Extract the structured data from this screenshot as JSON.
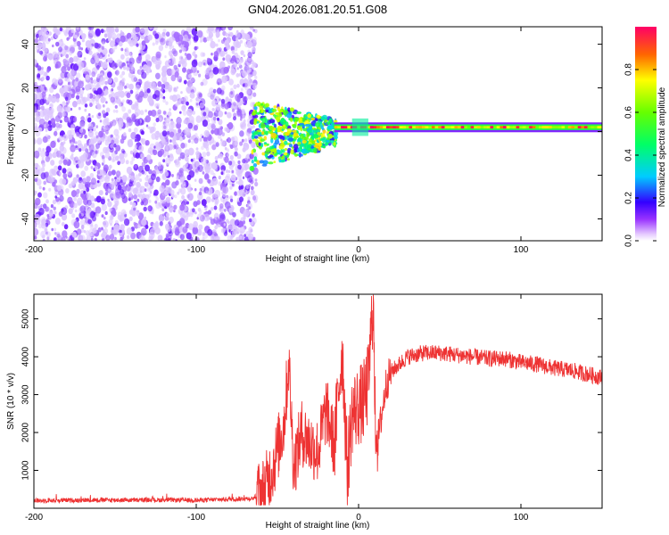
{
  "chart_data": [
    {
      "type": "heatmap",
      "title": "GN04.2026.081.20.51.G08",
      "xlabel": "Height of straight line (km)",
      "ylabel": "Frequency (Hz)",
      "xlim": [
        -200,
        150
      ],
      "ylim": [
        -50,
        48
      ],
      "xticks": [
        -200,
        -100,
        0,
        100
      ],
      "yticks": [
        -40,
        -20,
        0,
        20,
        40
      ],
      "grid": false,
      "colorbar": {
        "label": "Normalized spectral amplitude",
        "range": [
          0.0,
          1.0
        ],
        "ticks": [
          0.0,
          0.2,
          0.4,
          0.6,
          0.8
        ],
        "colormap": "rainbow (violet to red)"
      },
      "regions": [
        {
          "x_range": [
            -200,
            -63
          ],
          "freq_range": [
            -50,
            48
          ],
          "amplitude": "noise 0.1-0.2"
        },
        {
          "x_range": [
            -65,
            -15
          ],
          "freq_range": [
            -18,
            12
          ],
          "amplitude": "scattered 0.2-0.8"
        },
        {
          "x_range": [
            -15,
            150
          ],
          "freq_center": 2,
          "bandwidth_hz": 3,
          "amplitude": "band 0.6-1.0"
        }
      ]
    },
    {
      "type": "line",
      "xlabel": "Height of straight line (km)",
      "ylabel": "SNR (10 * v/v)",
      "xlim": [
        -200,
        150
      ],
      "ylim": [
        0,
        5650
      ],
      "xticks": [
        -200,
        -100,
        0,
        100
      ],
      "yticks": [
        1000,
        2000,
        3000,
        4000,
        5000
      ],
      "color": "#ee3333",
      "series": [
        {
          "name": "SNR",
          "x": [
            -200,
            -180,
            -160,
            -140,
            -120,
            -100,
            -80,
            -65,
            -58,
            -52,
            -46,
            -43,
            -40,
            -35,
            -30,
            -25,
            -20,
            -17,
            -15,
            -12,
            -10,
            -7,
            -4,
            0,
            3,
            6,
            9,
            10,
            12,
            14,
            17,
            20,
            25,
            30,
            40,
            50,
            60,
            70,
            80,
            90,
            100,
            110,
            120,
            130,
            140,
            150
          ],
          "y": [
            200,
            210,
            220,
            215,
            220,
            210,
            240,
            260,
            500,
            1200,
            2200,
            3900,
            1100,
            2000,
            1700,
            1500,
            2600,
            2100,
            1600,
            3300,
            4200,
            1000,
            2500,
            2700,
            2800,
            3300,
            5600,
            2500,
            1800,
            2400,
            3300,
            3600,
            3800,
            4000,
            4100,
            4100,
            4050,
            4000,
            3950,
            3950,
            3850,
            3800,
            3700,
            3650,
            3550,
            3450
          ]
        }
      ]
    }
  ]
}
